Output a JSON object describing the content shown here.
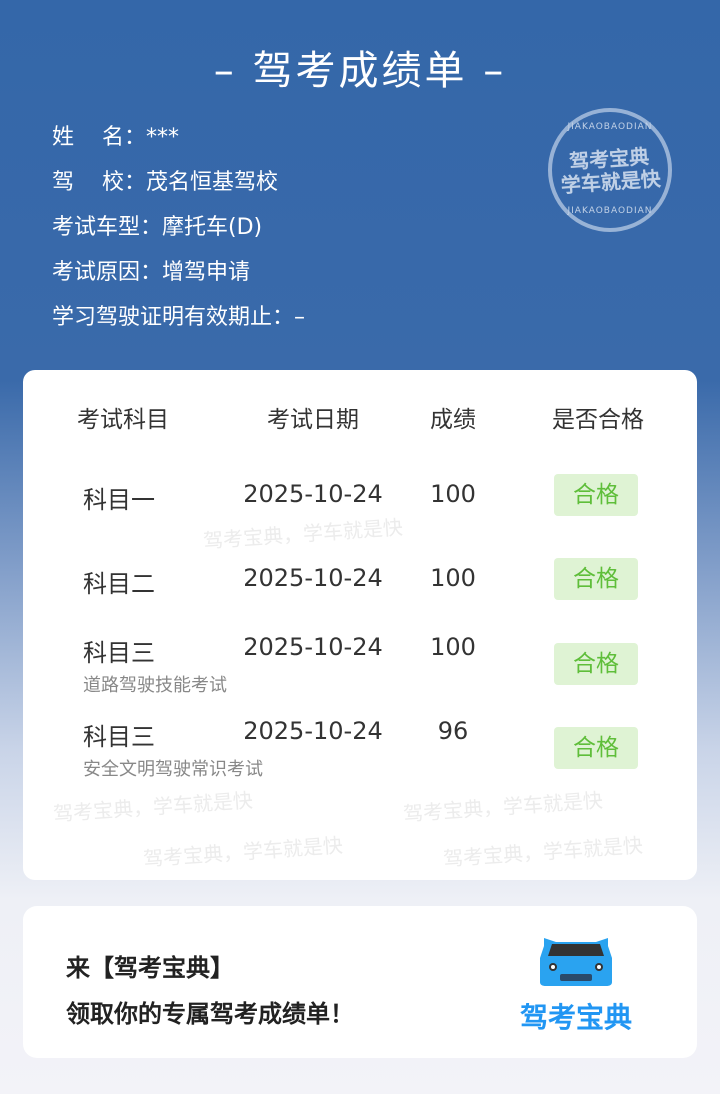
{
  "title": "– 驾考成绩单 –",
  "info": {
    "name": "姓    名：***",
    "school": "驾    校：茂名恒基驾校",
    "vehicle": "考试车型：摩托车(D)",
    "reason": "考试原因：增驾申请",
    "validity": "学习驾驶证明有效期止：–"
  },
  "stamp": {
    "top": "JIAKAOBAODIAN",
    "line1": "驾考宝典",
    "line2": "学车就是快",
    "bottom": "JIAKAOBAODIAN"
  },
  "watermark": "驾考宝典，学车就是快",
  "table": {
    "headers": [
      "考试科目",
      "考试日期",
      "成绩",
      "是否合格"
    ],
    "rows": [
      {
        "subject": "科目一",
        "date": "2025-10-24",
        "score": "100",
        "sub": "",
        "result": "合格"
      },
      {
        "subject": "科目二",
        "date": "2025-10-24",
        "score": "100",
        "sub": "",
        "result": "合格"
      },
      {
        "subject": "科目三",
        "date": "2025-10-24",
        "score": "100",
        "sub": "道路驾驶技能考试",
        "result": "合格"
      },
      {
        "subject": "科目三",
        "date": "2025-10-24",
        "score": "96",
        "sub": "安全文明驾驶常识考试",
        "result": "合格"
      }
    ]
  },
  "promo": {
    "line1": "来【驾考宝典】",
    "line2": "领取你的专属驾考成绩单！",
    "logo": "驾考宝典"
  },
  "colors": {
    "header_bg": "#3467a9",
    "pass_bg": "#dff3d4",
    "pass_text": "#5fbe3a",
    "brand": "#2196f3"
  }
}
